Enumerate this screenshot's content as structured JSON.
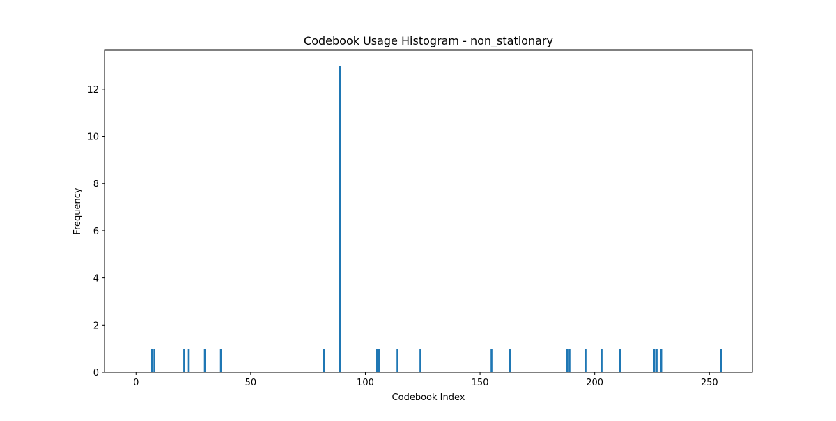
{
  "chart_data": {
    "type": "bar",
    "title": "Codebook Usage Histogram - non_stationary",
    "xlabel": "Codebook Index",
    "ylabel": "Frequency",
    "xlim": [
      -13.75,
      268.75
    ],
    "ylim": [
      0,
      13.65
    ],
    "xticks": [
      0,
      50,
      100,
      150,
      200,
      250
    ],
    "yticks": [
      0,
      2,
      4,
      6,
      8,
      10,
      12
    ],
    "grid": false,
    "bar_color": "#1f77b4",
    "x": [
      7,
      8,
      21,
      23,
      30,
      37,
      82,
      89,
      105,
      106,
      114,
      124,
      155,
      163,
      188,
      189,
      196,
      203,
      211,
      226,
      227,
      229,
      255
    ],
    "values": [
      1,
      1,
      1,
      1,
      1,
      1,
      1,
      13,
      1,
      1,
      1,
      1,
      1,
      1,
      1,
      1,
      1,
      1,
      1,
      1,
      1,
      1,
      1
    ]
  }
}
